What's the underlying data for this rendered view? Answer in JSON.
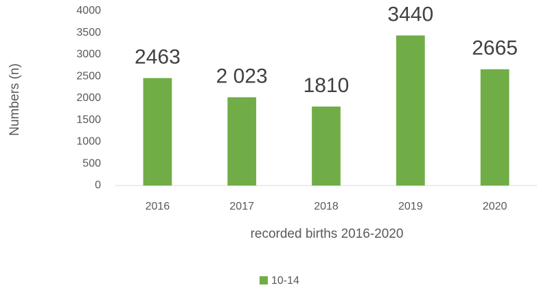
{
  "chart_data": {
    "type": "bar",
    "categories": [
      "2016",
      "2017",
      "2018",
      "2019",
      "2020"
    ],
    "values": [
      2463,
      2023,
      1810,
      3440,
      2665
    ],
    "value_labels": [
      "2463",
      "2 023",
      "1810",
      "3440",
      "2665"
    ],
    "color": "#70ad47",
    "ylim": [
      0,
      4000
    ],
    "yticks": [
      0,
      500,
      1000,
      1500,
      2000,
      2500,
      3000,
      3500,
      4000
    ],
    "grid": false,
    "x_label": "recorded births 2016-2020",
    "y_label": "Numbers (n)",
    "series_name": "10-14",
    "legend": "bottom"
  }
}
